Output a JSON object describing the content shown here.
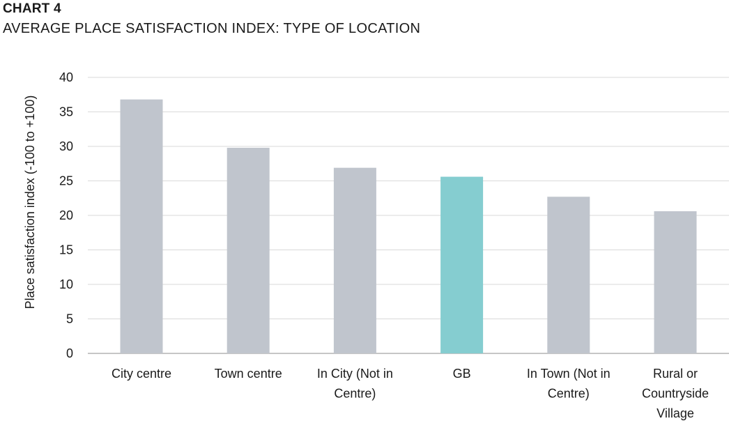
{
  "header": {
    "label": "CHART 4",
    "title": "AVERAGE PLACE SATISFACTION INDEX: TYPE OF LOCATION"
  },
  "chart_data": {
    "type": "bar",
    "categories": [
      [
        "City centre"
      ],
      [
        "Town centre"
      ],
      [
        "In City (Not in",
        "Centre)"
      ],
      [
        "GB"
      ],
      [
        "In Town (Not in",
        "Centre)"
      ],
      [
        "Rural or",
        "Countryside",
        "Village"
      ]
    ],
    "values": [
      36.8,
      29.8,
      26.9,
      25.6,
      22.7,
      20.6
    ],
    "highlight_index": 3,
    "ylabel": "Place satisfaction index (-100 to +100)",
    "xlabel": "",
    "ylim": [
      0,
      40
    ],
    "yticks": [
      0,
      5,
      10,
      15,
      20,
      25,
      30,
      35,
      40
    ],
    "grid": true,
    "legend": "none",
    "colors": {
      "bar": "#c0c5cd",
      "highlight": "#85cdd0",
      "grid": "#d9d9d9",
      "axis": "#8c8c8c"
    }
  }
}
